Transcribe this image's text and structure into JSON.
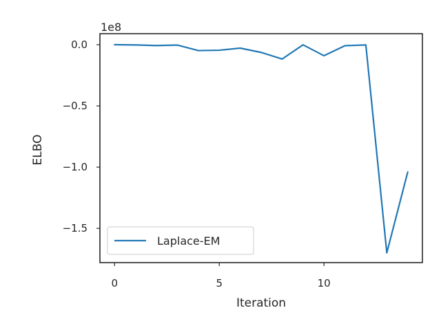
{
  "chart_data": {
    "type": "line",
    "title": "",
    "xlabel": "Iteration",
    "ylabel": "ELBO",
    "y_offset_label": "1e8",
    "xlim": [
      -0.7,
      14.7
    ],
    "ylim": [
      -1.78,
      0.09
    ],
    "x_ticks": [
      0,
      5,
      10
    ],
    "x_tick_labels": [
      "0",
      "5",
      "10"
    ],
    "y_ticks": [
      0,
      -0.5,
      -1.0,
      -1.5
    ],
    "y_tick_labels": [
      "0.0",
      "−0.5",
      "−1.0",
      "−1.5"
    ],
    "grid": false,
    "legend_position": "lower-left",
    "series": [
      {
        "name": "Laplace-EM",
        "color": "#1f77b4",
        "x": [
          0,
          1,
          2,
          3,
          4,
          5,
          6,
          7,
          8,
          9,
          10,
          11,
          12,
          13,
          14
        ],
        "y": [
          0.0,
          -0.002,
          -0.007,
          -0.003,
          -0.048,
          -0.045,
          -0.028,
          -0.063,
          -0.117,
          -0.001,
          -0.09,
          -0.008,
          -0.002,
          -1.7,
          -1.04
        ]
      }
    ]
  }
}
